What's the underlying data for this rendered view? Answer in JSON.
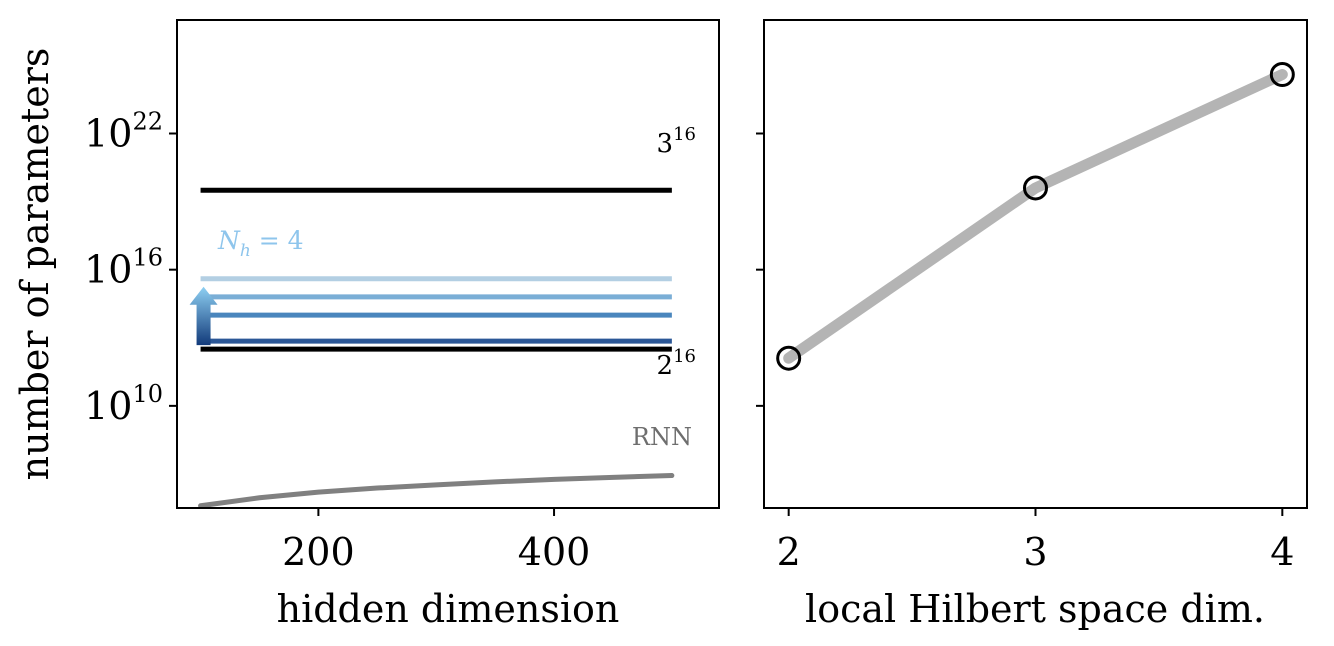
{
  "chart_data": [
    {
      "type": "line",
      "xlabel": "hidden dimension",
      "ylabel": "number of parameters",
      "yscale": "log",
      "xlim": [
        80,
        540
      ],
      "ylim_log10": [
        5.5,
        27
      ],
      "xticks": [
        {
          "value": 200,
          "label": "200"
        },
        {
          "value": 400,
          "label": "400"
        }
      ],
      "yticks": [
        {
          "exp": 10,
          "base": "10",
          "sup": "10"
        },
        {
          "exp": 16,
          "base": "10",
          "sup": "16"
        },
        {
          "exp": 22,
          "base": "10",
          "sup": "22"
        }
      ],
      "x_range": [
        100,
        500
      ],
      "reference_lines": [
        {
          "label_base": "3",
          "label_sup": "16",
          "log10_value": 19.5,
          "color": "#000000"
        },
        {
          "label_base": "2",
          "label_sup": "16",
          "log10_value": 12.5,
          "color": "#000000"
        }
      ],
      "mpo_series": [
        {
          "log10_value": 12.85,
          "color": "#2b5797"
        },
        {
          "log10_value": 14.0,
          "color": "#4a86bd"
        },
        {
          "log10_value": 14.8,
          "color": "#7aaed6"
        },
        {
          "log10_value": 15.6,
          "color": "#b3cfe3"
        }
      ],
      "mpo_arrow_label": "N_h = 4",
      "mpo_arrow_label_parts": {
        "main": "N",
        "sub": "h",
        "rest": " = 4"
      },
      "rnn_series": {
        "label": "RNN",
        "color": "#808080",
        "x": [
          100,
          150,
          200,
          250,
          300,
          350,
          400,
          450,
          500
        ],
        "log10_y": [
          5.6,
          5.95,
          6.2,
          6.38,
          6.52,
          6.65,
          6.76,
          6.85,
          6.93
        ]
      }
    },
    {
      "type": "line",
      "xlabel": "local Hilbert space dim.",
      "yscale": "log",
      "shared_y": true,
      "xlim": [
        1.9,
        4.1
      ],
      "ylim_log10": [
        5.5,
        27
      ],
      "xticks": [
        {
          "value": 2,
          "label": "2"
        },
        {
          "value": 3,
          "label": "3"
        },
        {
          "value": 4,
          "label": "4"
        }
      ],
      "series": [
        {
          "x": [
            2,
            3,
            4
          ],
          "log10_y": [
            12.1,
            19.6,
            24.6
          ],
          "line_color": "#b4b4b4",
          "marker": "open-circle"
        }
      ]
    }
  ]
}
